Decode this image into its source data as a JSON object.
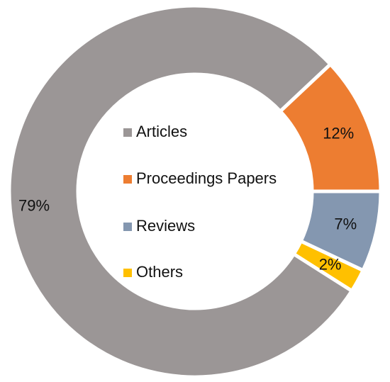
{
  "chart_data": {
    "type": "donut",
    "categories": [
      "Articles",
      "Proceedings Papers",
      "Reviews",
      "Others"
    ],
    "values": [
      79,
      12,
      7,
      2
    ],
    "value_labels": [
      "79%",
      "12%",
      "7%",
      "2%"
    ],
    "colors": [
      "#9b9696",
      "#ed7d31",
      "#8497b0",
      "#ffc000"
    ]
  }
}
